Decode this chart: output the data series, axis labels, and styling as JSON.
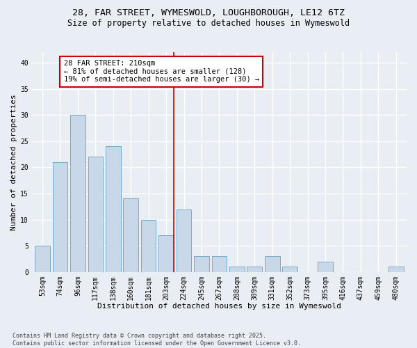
{
  "title_line1": "28, FAR STREET, WYMESWOLD, LOUGHBOROUGH, LE12 6TZ",
  "title_line2": "Size of property relative to detached houses in Wymeswold",
  "xlabel": "Distribution of detached houses by size in Wymeswold",
  "ylabel": "Number of detached properties",
  "categories": [
    "53sqm",
    "74sqm",
    "96sqm",
    "117sqm",
    "138sqm",
    "160sqm",
    "181sqm",
    "203sqm",
    "224sqm",
    "245sqm",
    "267sqm",
    "288sqm",
    "309sqm",
    "331sqm",
    "352sqm",
    "373sqm",
    "395sqm",
    "416sqm",
    "437sqm",
    "459sqm",
    "480sqm"
  ],
  "values": [
    5,
    21,
    30,
    22,
    24,
    14,
    10,
    7,
    12,
    3,
    3,
    1,
    1,
    3,
    1,
    0,
    2,
    0,
    0,
    0,
    1
  ],
  "bar_color": "#c8d8e8",
  "bar_edgecolor": "#7aaac8",
  "vline_position": 7.5,
  "vline_color": "#cc0000",
  "annotation_text": "28 FAR STREET: 210sqm\n← 81% of detached houses are smaller (128)\n19% of semi-detached houses are larger (30) →",
  "annotation_box_edgecolor": "#cc0000",
  "annotation_box_facecolor": "#ffffff",
  "ylim": [
    0,
    42
  ],
  "yticks": [
    0,
    5,
    10,
    15,
    20,
    25,
    30,
    35,
    40
  ],
  "bg_color": "#e8eef4",
  "grid_color": "#ffffff",
  "footer_text": "Contains HM Land Registry data © Crown copyright and database right 2025.\nContains public sector information licensed under the Open Government Licence v3.0.",
  "title_fontsize": 9.5,
  "subtitle_fontsize": 8.5,
  "axis_label_fontsize": 8,
  "tick_fontsize": 7,
  "annotation_fontsize": 7.5,
  "footer_fontsize": 6
}
